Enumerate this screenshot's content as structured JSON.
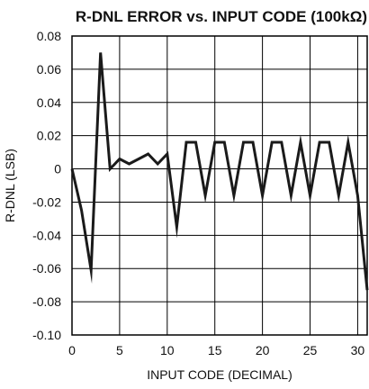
{
  "chart_data": {
    "type": "line",
    "title": "R-DNL ERROR vs. INPUT CODE (100kΩ)",
    "xlabel": "INPUT CODE (DECIMAL)",
    "ylabel": "R-DNL (LSB)",
    "xlim": [
      0,
      31
    ],
    "ylim": [
      -0.1,
      0.08
    ],
    "x_ticks": [
      "0",
      "5",
      "10",
      "15",
      "20",
      "25",
      "30"
    ],
    "x_tick_values": [
      0,
      5,
      10,
      15,
      20,
      25,
      30
    ],
    "y_ticks": [
      "0.08",
      "0.06",
      "0.04",
      "0.02",
      "0",
      "-0.02",
      "-0.04",
      "-0.06",
      "-0.08",
      "-0.10"
    ],
    "y_tick_values": [
      0.08,
      0.06,
      0.04,
      0.02,
      0,
      -0.02,
      -0.04,
      -0.06,
      -0.08,
      -0.1
    ],
    "grid": true,
    "series": [
      {
        "x": [
          0,
          1,
          2,
          3,
          4,
          5,
          6,
          7,
          8,
          9,
          10,
          11,
          12,
          13,
          14,
          15,
          16,
          17,
          18,
          19,
          20,
          21,
          22,
          23,
          24,
          25,
          26,
          27,
          28,
          29,
          30,
          31
        ],
        "y": [
          0.0,
          -0.025,
          -0.061,
          0.07,
          0.0,
          0.006,
          0.003,
          0.006,
          0.009,
          0.003,
          0.009,
          -0.035,
          0.016,
          0.016,
          -0.016,
          0.016,
          0.016,
          -0.016,
          0.016,
          0.016,
          -0.016,
          0.016,
          0.016,
          -0.016,
          0.016,
          -0.016,
          0.016,
          0.016,
          -0.016,
          0.016,
          -0.016,
          -0.073
        ]
      }
    ]
  }
}
